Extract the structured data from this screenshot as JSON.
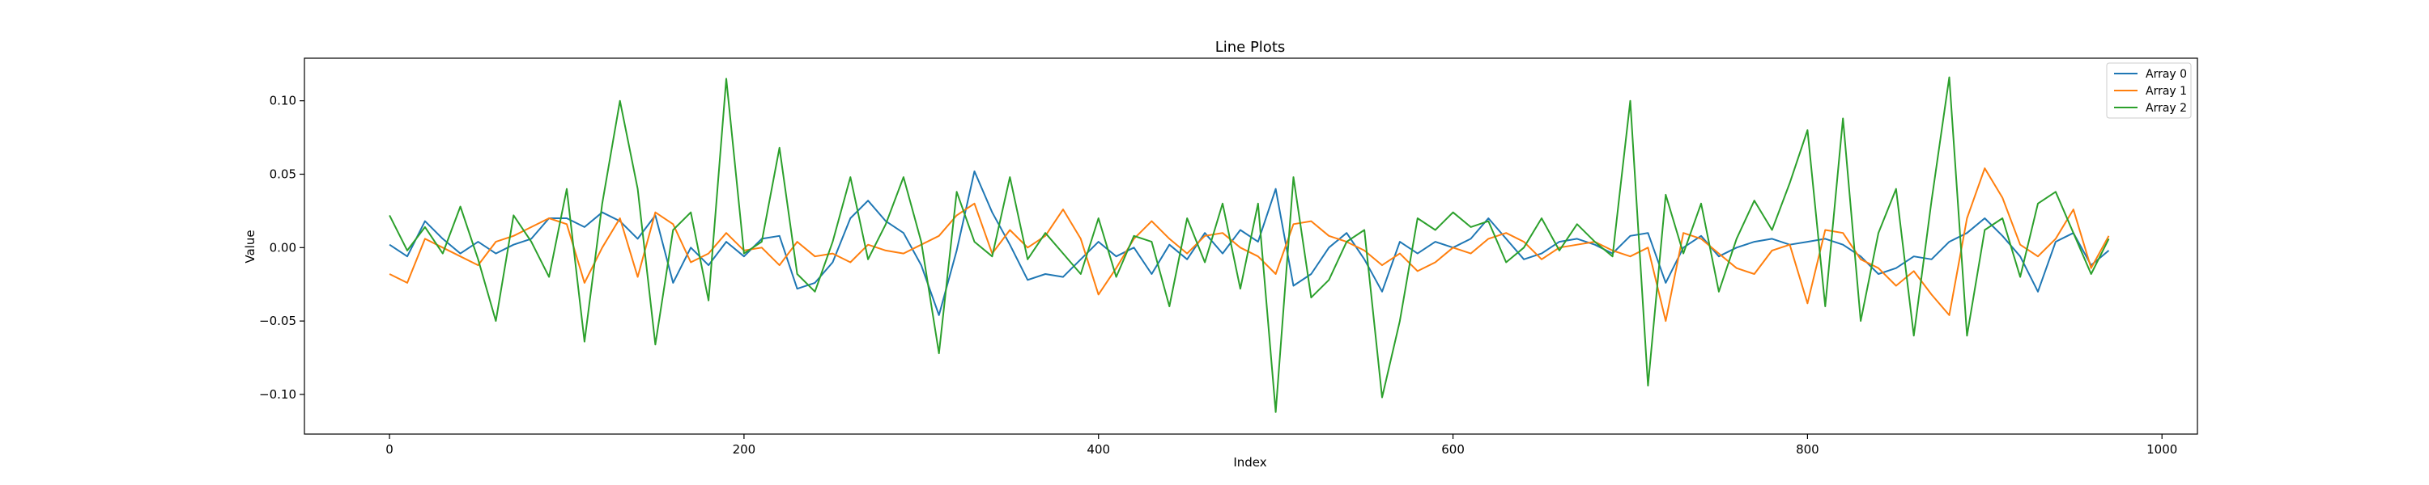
{
  "chart_data": {
    "type": "line",
    "title": "Line Plots",
    "xlabel": "Index",
    "ylabel": "Value",
    "xlim": [
      -48,
      1020
    ],
    "ylim": [
      -0.127,
      0.129
    ],
    "xticks": [
      0,
      200,
      400,
      600,
      800,
      1000
    ],
    "xtick_labels": [
      "0",
      "200",
      "400",
      "600",
      "800",
      "1000"
    ],
    "yticks": [
      -0.1,
      -0.05,
      0.0,
      0.05,
      0.1
    ],
    "ytick_labels": [
      "−0.10",
      "−0.05",
      "0.00",
      "0.05",
      "0.10"
    ],
    "grid": false,
    "legend_position": "top-right",
    "series": [
      {
        "name": "Array 0",
        "color": "#1f77b4",
        "x": [
          0,
          10,
          20,
          30,
          40,
          50,
          60,
          70,
          80,
          90,
          100,
          110,
          120,
          130,
          140,
          150,
          160,
          170,
          180,
          190,
          200,
          210,
          220,
          230,
          240,
          250,
          260,
          270,
          280,
          290,
          300,
          310,
          320,
          330,
          340,
          350,
          360,
          370,
          380,
          390,
          400,
          410,
          420,
          430,
          440,
          450,
          460,
          470,
          480,
          490,
          500,
          510,
          520,
          530,
          540,
          550,
          560,
          570,
          580,
          590,
          600,
          610,
          620,
          630,
          640,
          650,
          660,
          670,
          680,
          690,
          700,
          710,
          720,
          730,
          740,
          750,
          760,
          770,
          780,
          790,
          800,
          810,
          820,
          830,
          840,
          850,
          860,
          870,
          880,
          890,
          900,
          910,
          920,
          930,
          940,
          950,
          960,
          970
        ],
        "y": [
          0.002,
          -0.006,
          0.018,
          0.006,
          -0.004,
          0.004,
          -0.004,
          0.002,
          0.006,
          0.02,
          0.02,
          0.014,
          0.024,
          0.018,
          0.006,
          0.022,
          -0.024,
          0.0,
          -0.012,
          0.004,
          -0.006,
          0.006,
          0.008,
          -0.028,
          -0.024,
          -0.01,
          0.02,
          0.032,
          0.018,
          0.01,
          -0.012,
          -0.046,
          -0.002,
          0.052,
          0.024,
          0.002,
          -0.022,
          -0.018,
          -0.02,
          -0.008,
          0.004,
          -0.006,
          0.0,
          -0.018,
          0.002,
          -0.008,
          0.01,
          -0.004,
          0.012,
          0.004,
          0.04,
          -0.026,
          -0.018,
          0.0,
          0.01,
          -0.008,
          -0.03,
          0.004,
          -0.004,
          0.004,
          0.0,
          0.006,
          0.02,
          0.006,
          -0.008,
          -0.004,
          0.004,
          0.006,
          0.002,
          -0.004,
          0.008,
          0.01,
          -0.024,
          0.0,
          0.008,
          -0.006,
          0.0,
          0.004,
          0.006,
          0.002,
          0.004,
          0.006,
          0.002,
          -0.006,
          -0.018,
          -0.014,
          -0.006,
          -0.008,
          0.004,
          0.01,
          0.02,
          0.008,
          -0.006,
          -0.03,
          0.004,
          0.01,
          -0.012,
          -0.002
        ]
      },
      {
        "name": "Array 1",
        "color": "#ff7f0e",
        "x": [
          0,
          10,
          20,
          30,
          40,
          50,
          60,
          70,
          80,
          90,
          100,
          110,
          120,
          130,
          140,
          150,
          160,
          170,
          180,
          190,
          200,
          210,
          220,
          230,
          240,
          250,
          260,
          270,
          280,
          290,
          300,
          310,
          320,
          330,
          340,
          350,
          360,
          370,
          380,
          390,
          400,
          410,
          420,
          430,
          440,
          450,
          460,
          470,
          480,
          490,
          500,
          510,
          520,
          530,
          540,
          550,
          560,
          570,
          580,
          590,
          600,
          610,
          620,
          630,
          640,
          650,
          660,
          670,
          680,
          690,
          700,
          710,
          720,
          730,
          740,
          750,
          760,
          770,
          780,
          790,
          800,
          810,
          820,
          830,
          840,
          850,
          860,
          870,
          880,
          890,
          900,
          910,
          920,
          930,
          940,
          950,
          960,
          970
        ],
        "y": [
          -0.018,
          -0.024,
          0.006,
          0.0,
          -0.006,
          -0.012,
          0.004,
          0.008,
          0.014,
          0.02,
          0.016,
          -0.024,
          0.0,
          0.02,
          -0.02,
          0.024,
          0.016,
          -0.01,
          -0.004,
          0.01,
          -0.002,
          0.0,
          -0.012,
          0.004,
          -0.006,
          -0.004,
          -0.01,
          0.002,
          -0.002,
          -0.004,
          0.002,
          0.008,
          0.022,
          0.03,
          -0.004,
          0.012,
          0.0,
          0.008,
          0.026,
          0.006,
          -0.032,
          -0.014,
          0.006,
          0.018,
          0.006,
          -0.004,
          0.008,
          0.01,
          0.0,
          -0.006,
          -0.018,
          0.016,
          0.018,
          0.008,
          0.004,
          -0.002,
          -0.012,
          -0.004,
          -0.016,
          -0.01,
          0.0,
          -0.004,
          0.006,
          0.01,
          0.004,
          -0.008,
          0.0,
          0.002,
          0.004,
          -0.002,
          -0.006,
          0.0,
          -0.05,
          0.01,
          0.006,
          -0.004,
          -0.014,
          -0.018,
          -0.002,
          0.002,
          -0.038,
          0.012,
          0.01,
          -0.008,
          -0.014,
          -0.026,
          -0.016,
          -0.032,
          -0.046,
          0.02,
          0.054,
          0.034,
          0.002,
          -0.006,
          0.006,
          0.026,
          -0.014,
          0.008
        ]
      },
      {
        "name": "Array 2",
        "color": "#2ca02c",
        "x": [
          0,
          10,
          20,
          30,
          40,
          50,
          60,
          70,
          80,
          90,
          100,
          110,
          120,
          130,
          140,
          150,
          160,
          170,
          180,
          190,
          200,
          210,
          220,
          230,
          240,
          250,
          260,
          270,
          280,
          290,
          300,
          310,
          320,
          330,
          340,
          350,
          360,
          370,
          380,
          390,
          400,
          410,
          420,
          430,
          440,
          450,
          460,
          470,
          480,
          490,
          500,
          510,
          520,
          530,
          540,
          550,
          560,
          570,
          580,
          590,
          600,
          610,
          620,
          630,
          640,
          650,
          660,
          670,
          680,
          690,
          700,
          710,
          720,
          730,
          740,
          750,
          760,
          770,
          780,
          790,
          800,
          810,
          820,
          830,
          840,
          850,
          860,
          870,
          880,
          890,
          900,
          910,
          920,
          930,
          940,
          950,
          960,
          970
        ],
        "y": [
          0.022,
          -0.002,
          0.014,
          -0.004,
          0.028,
          -0.008,
          -0.05,
          0.022,
          0.004,
          -0.02,
          0.04,
          -0.064,
          0.03,
          0.1,
          0.04,
          -0.066,
          0.012,
          0.024,
          -0.036,
          0.115,
          -0.004,
          0.004,
          0.068,
          -0.018,
          -0.03,
          0.004,
          0.048,
          -0.008,
          0.016,
          0.048,
          0.004,
          -0.072,
          0.038,
          0.004,
          -0.006,
          0.048,
          -0.008,
          0.01,
          -0.004,
          -0.018,
          0.02,
          -0.02,
          0.008,
          0.004,
          -0.04,
          0.02,
          -0.01,
          0.03,
          -0.028,
          0.03,
          -0.112,
          0.048,
          -0.034,
          -0.022,
          0.004,
          0.012,
          -0.102,
          -0.05,
          0.02,
          0.012,
          0.024,
          0.014,
          0.018,
          -0.01,
          0.0,
          0.02,
          -0.002,
          0.016,
          0.004,
          -0.006,
          0.1,
          -0.094,
          0.036,
          -0.004,
          0.03,
          -0.03,
          0.006,
          0.032,
          0.012,
          0.044,
          0.08,
          -0.04,
          0.088,
          -0.05,
          0.01,
          0.04,
          -0.06,
          0.032,
          0.116,
          -0.06,
          0.012,
          0.02,
          -0.02,
          0.03,
          0.038,
          0.01,
          -0.018,
          0.006
        ]
      }
    ]
  }
}
